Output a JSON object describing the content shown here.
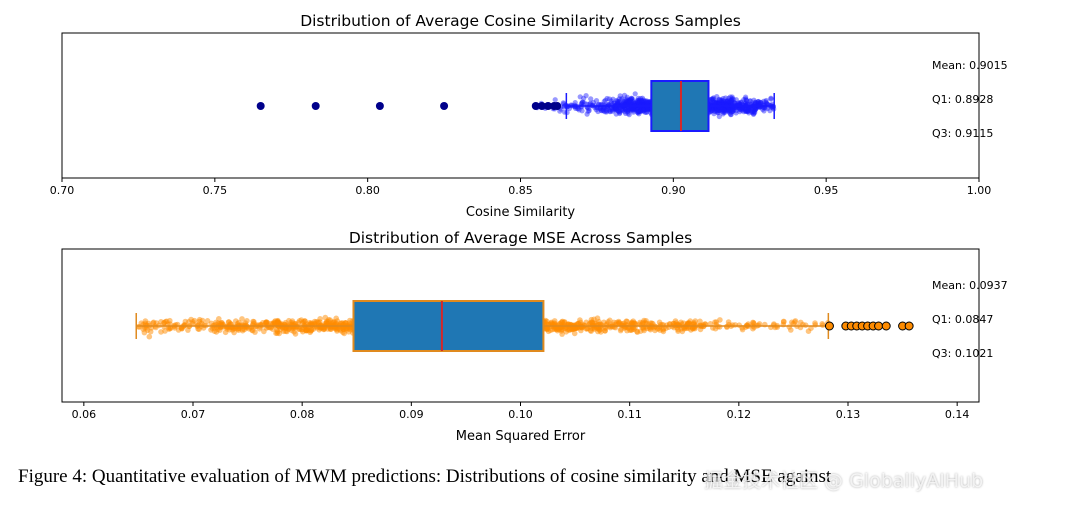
{
  "chart_data": [
    {
      "type": "box",
      "title": "Distribution of Average Cosine Similarity Across Samples",
      "xlabel": "Cosine Similarity",
      "xlim": [
        0.7,
        1.0
      ],
      "xticks": [
        "0.70",
        "0.75",
        "0.80",
        "0.85",
        "0.90",
        "0.95",
        "1.00"
      ],
      "grid": false,
      "orientation": "horizontal",
      "box": {
        "whisker_low": 0.865,
        "q1": 0.8928,
        "median": 0.9025,
        "q3": 0.9115,
        "whisker_high": 0.933
      },
      "outliers": [
        0.765,
        0.783,
        0.804,
        0.825,
        0.855,
        0.857,
        0.859,
        0.861,
        0.862
      ],
      "jitter_range": [
        0.855,
        0.933
      ],
      "annotations": [
        "Mean: 0.9015",
        "Q1: 0.8928",
        "Q3: 0.9115"
      ],
      "colors": {
        "points": "#1a1aff",
        "box": "#1f77b4",
        "box_edge": "#1a1aff",
        "median": "#d62728",
        "outliers": "#00008b"
      }
    },
    {
      "type": "box",
      "title": "Distribution of Average MSE Across Samples",
      "xlabel": "Mean Squared Error",
      "xlim": [
        0.058,
        0.142
      ],
      "xticks": [
        "0.06",
        "0.07",
        "0.08",
        "0.09",
        "0.10",
        "0.11",
        "0.12",
        "0.13",
        "0.14"
      ],
      "grid": false,
      "orientation": "horizontal",
      "box": {
        "whisker_low": 0.0648,
        "q1": 0.0847,
        "median": 0.0928,
        "q3": 0.1021,
        "whisker_high": 0.1282
      },
      "outliers": [
        0.1283,
        0.1298,
        0.1303,
        0.1308,
        0.1313,
        0.1318,
        0.1323,
        0.1328,
        0.1335,
        0.135,
        0.1356
      ],
      "jitter_range": [
        0.0648,
        0.1282
      ],
      "annotations": [
        "Mean: 0.0937",
        "Q1: 0.0847",
        "Q3: 0.1021"
      ],
      "colors": {
        "points": "#ff8c00",
        "box": "#1f77b4",
        "box_edge": "#e08a1e",
        "median": "#d62728",
        "outliers": "#ff8c00"
      }
    }
  ],
  "caption": "Figure 4: Quantitative evaluation of MWM predictions: Distributions of cosine similarity and MSE against",
  "watermark": "掘金技术社区 @ GloballyAIHub"
}
